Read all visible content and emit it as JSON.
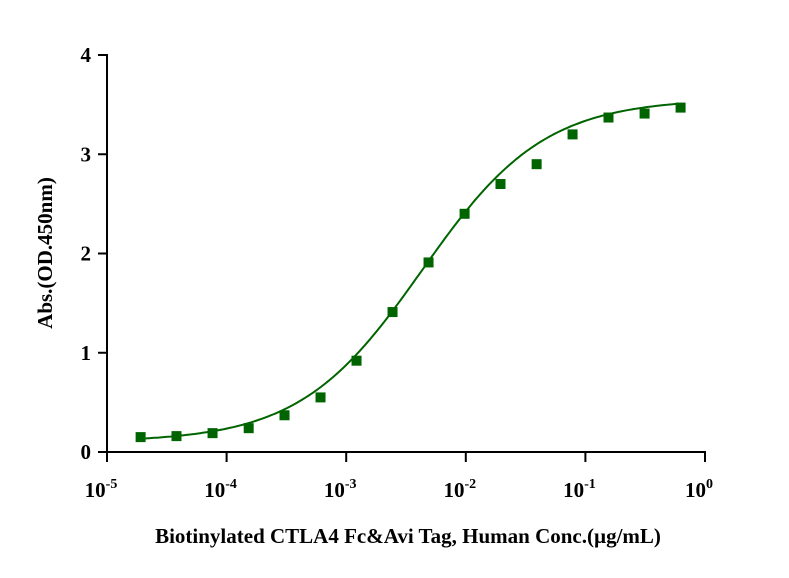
{
  "chart_data": {
    "type": "scatter",
    "title": "",
    "xlabel": "Biotinylated CTLA4 Fc&Avi Tag, Human Conc.(µg/mL)",
    "ylabel": "Abs.(OD.450nm)",
    "xscale": "log",
    "xlim": [
      1e-05,
      1
    ],
    "ylim": [
      0,
      4
    ],
    "yticks": [
      0,
      1,
      2,
      3,
      4
    ],
    "xticks": [
      {
        "base": "10",
        "exp": "-5",
        "value": 1e-05
      },
      {
        "base": "10",
        "exp": "-4",
        "value": 0.0001
      },
      {
        "base": "10",
        "exp": "-3",
        "value": 0.001
      },
      {
        "base": "10",
        "exp": "-2",
        "value": 0.01
      },
      {
        "base": "10",
        "exp": "-1",
        "value": 0.1
      },
      {
        "base": "10",
        "exp": "0",
        "value": 1
      }
    ],
    "grid": false,
    "series": [
      {
        "name": "Biotinylated CTLA4 Fc&Avi Tag, Human",
        "color": "#006400",
        "x": [
          1.91e-05,
          3.81e-05,
          7.63e-05,
          0.000153,
          0.000305,
          0.00061,
          0.00122,
          0.00244,
          0.00488,
          0.00977,
          0.0195,
          0.0391,
          0.0781,
          0.156,
          0.3125,
          0.625
        ],
        "y": [
          0.15,
          0.16,
          0.19,
          0.24,
          0.37,
          0.55,
          0.92,
          1.41,
          1.91,
          2.4,
          2.7,
          2.9,
          3.2,
          3.37,
          3.41,
          3.47
        ],
        "fit": {
          "model": "4PL",
          "bottom": 0.1,
          "top": 3.56,
          "ec50": 0.0043,
          "hill": 0.85
        }
      }
    ]
  }
}
